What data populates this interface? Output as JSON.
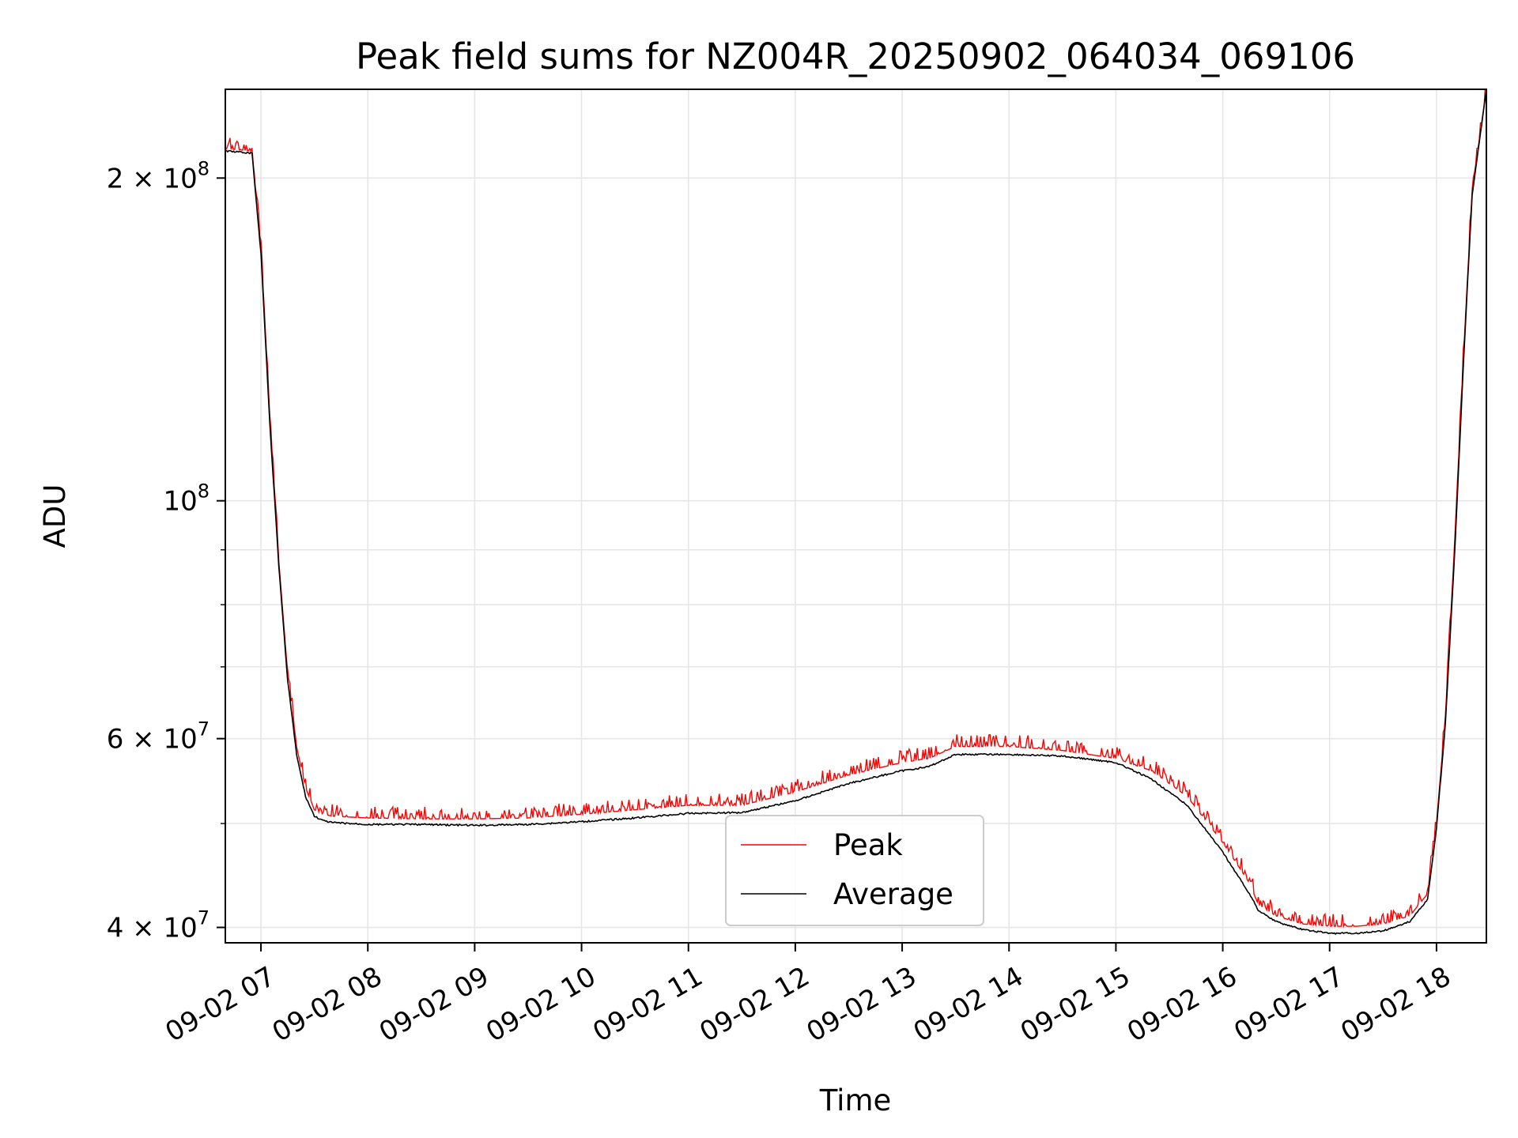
{
  "chart_data": {
    "type": "line",
    "title": "Peak field sums for NZ004R_20250902_064034_069106",
    "xlabel": "Time",
    "ylabel": "ADU",
    "yscale": "log",
    "grid": true,
    "legend_position": "lower-center",
    "xlim": [
      "2025-09-02 06:40",
      "2025-09-02 18:28"
    ],
    "ylim": [
      38700000,
      242000000
    ],
    "x_ticks": [
      {
        "value": "2025-09-02 07:00",
        "label": "09-02 07"
      },
      {
        "value": "2025-09-02 08:00",
        "label": "09-02 08"
      },
      {
        "value": "2025-09-02 09:00",
        "label": "09-02 09"
      },
      {
        "value": "2025-09-02 10:00",
        "label": "09-02 10"
      },
      {
        "value": "2025-09-02 11:00",
        "label": "09-02 11"
      },
      {
        "value": "2025-09-02 12:00",
        "label": "09-02 12"
      },
      {
        "value": "2025-09-02 13:00",
        "label": "09-02 13"
      },
      {
        "value": "2025-09-02 14:00",
        "label": "09-02 14"
      },
      {
        "value": "2025-09-02 15:00",
        "label": "09-02 15"
      },
      {
        "value": "2025-09-02 16:00",
        "label": "09-02 16"
      },
      {
        "value": "2025-09-02 17:00",
        "label": "09-02 17"
      },
      {
        "value": "2025-09-02 18:00",
        "label": "09-02 18"
      }
    ],
    "y_ticks": [
      {
        "value": 40000000,
        "base": "4 × 10",
        "exp": "7"
      },
      {
        "value": 60000000,
        "base": "6 × 10",
        "exp": "7"
      },
      {
        "value": 100000000,
        "base": "10",
        "exp": "8"
      },
      {
        "value": 200000000,
        "base": "2 × 10",
        "exp": "8"
      }
    ],
    "y_minor_ticks": [
      50000000,
      70000000,
      80000000,
      90000000
    ],
    "series": [
      {
        "name": "Peak",
        "color": "#ff0000",
        "x": [
          "2025-09-02 06:40",
          "2025-09-02 06:55",
          "2025-09-02 07:00",
          "2025-09-02 07:05",
          "2025-09-02 07:10",
          "2025-09-02 07:15",
          "2025-09-02 07:20",
          "2025-09-02 07:25",
          "2025-09-02 07:30",
          "2025-09-02 07:35",
          "2025-09-02 07:40",
          "2025-09-02 07:50",
          "2025-09-02 08:00",
          "2025-09-02 08:30",
          "2025-09-02 09:00",
          "2025-09-02 09:30",
          "2025-09-02 10:00",
          "2025-09-02 10:30",
          "2025-09-02 11:00",
          "2025-09-02 11:30",
          "2025-09-02 12:00",
          "2025-09-02 12:30",
          "2025-09-02 13:00",
          "2025-09-02 13:15",
          "2025-09-02 13:30",
          "2025-09-02 14:00",
          "2025-09-02 14:30",
          "2025-09-02 15:00",
          "2025-09-02 15:20",
          "2025-09-02 15:40",
          "2025-09-02 16:00",
          "2025-09-02 16:15",
          "2025-09-02 16:20",
          "2025-09-02 16:30",
          "2025-09-02 16:45",
          "2025-09-02 17:00",
          "2025-09-02 17:15",
          "2025-09-02 17:30",
          "2025-09-02 17:45",
          "2025-09-02 17:55",
          "2025-09-02 18:00",
          "2025-09-02 18:05",
          "2025-09-02 18:10",
          "2025-09-02 18:15",
          "2025-09-02 18:20",
          "2025-09-02 18:28"
        ],
        "values": [
          213000000,
          212000000,
          172000000,
          120000000,
          88000000,
          69000000,
          59000000,
          54000000,
          51500000,
          51000000,
          50800000,
          50700000,
          50600000,
          50500000,
          50500000,
          50600000,
          51000000,
          51500000,
          52000000,
          52000000,
          53500000,
          55500000,
          57000000,
          57500000,
          59000000,
          59000000,
          58500000,
          57500000,
          56000000,
          53000000,
          48000000,
          44000000,
          42000000,
          41000000,
          40300000,
          40100000,
          40100000,
          40300000,
          41000000,
          43000000,
          50000000,
          63000000,
          90000000,
          135000000,
          195000000,
          242000000
        ]
      },
      {
        "name": "Average",
        "color": "#000000",
        "x": [
          "2025-09-02 06:40",
          "2025-09-02 06:55",
          "2025-09-02 07:00",
          "2025-09-02 07:05",
          "2025-09-02 07:10",
          "2025-09-02 07:15",
          "2025-09-02 07:20",
          "2025-09-02 07:25",
          "2025-09-02 07:30",
          "2025-09-02 07:35",
          "2025-09-02 07:40",
          "2025-09-02 07:50",
          "2025-09-02 08:00",
          "2025-09-02 08:30",
          "2025-09-02 09:00",
          "2025-09-02 09:30",
          "2025-09-02 10:00",
          "2025-09-02 10:30",
          "2025-09-02 11:00",
          "2025-09-02 11:30",
          "2025-09-02 12:00",
          "2025-09-02 12:30",
          "2025-09-02 13:00",
          "2025-09-02 13:15",
          "2025-09-02 13:30",
          "2025-09-02 14:00",
          "2025-09-02 14:30",
          "2025-09-02 15:00",
          "2025-09-02 15:20",
          "2025-09-02 15:40",
          "2025-09-02 16:00",
          "2025-09-02 16:15",
          "2025-09-02 16:20",
          "2025-09-02 16:30",
          "2025-09-02 16:45",
          "2025-09-02 17:00",
          "2025-09-02 17:15",
          "2025-09-02 17:30",
          "2025-09-02 17:45",
          "2025-09-02 17:55",
          "2025-09-02 18:00",
          "2025-09-02 18:05",
          "2025-09-02 18:10",
          "2025-09-02 18:15",
          "2025-09-02 18:20",
          "2025-09-02 18:28"
        ],
        "values": [
          212000000,
          211000000,
          170000000,
          118000000,
          87000000,
          68000000,
          58000000,
          53000000,
          50800000,
          50300000,
          50100000,
          50000000,
          49900000,
          49900000,
          49800000,
          49900000,
          50200000,
          50600000,
          51100000,
          51200000,
          52500000,
          54500000,
          56000000,
          56500000,
          58000000,
          58000000,
          57800000,
          57000000,
          55000000,
          52000000,
          47000000,
          43000000,
          41500000,
          40500000,
          39800000,
          39500000,
          39500000,
          39700000,
          40500000,
          42500000,
          49500000,
          62000000,
          88000000,
          133000000,
          193000000,
          242000000
        ]
      }
    ]
  }
}
